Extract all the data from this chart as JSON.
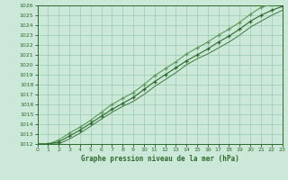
{
  "title": "Graphe pression niveau de la mer (hPa)",
  "xlim": [
    0,
    23
  ],
  "ylim": [
    1012,
    1026
  ],
  "xticks": [
    0,
    1,
    2,
    3,
    4,
    5,
    6,
    7,
    8,
    9,
    10,
    11,
    12,
    13,
    14,
    15,
    16,
    17,
    18,
    19,
    20,
    21,
    22,
    23
  ],
  "yticks": [
    1012,
    1013,
    1014,
    1015,
    1016,
    1017,
    1018,
    1019,
    1020,
    1021,
    1022,
    1023,
    1024,
    1025,
    1026
  ],
  "bg_color": "#cce8d8",
  "grid_color": "#99ccb3",
  "line_color_dark": "#2d6a2d",
  "line_color_mid": "#3d7a3d",
  "line_color_light": "#5a9a5a",
  "x": [
    0,
    1,
    2,
    3,
    4,
    5,
    6,
    7,
    8,
    9,
    10,
    11,
    12,
    13,
    14,
    15,
    16,
    17,
    18,
    19,
    20,
    21,
    22,
    23
  ],
  "p_upper": [
    1012.0,
    1012.0,
    1012.4,
    1013.1,
    1013.7,
    1014.4,
    1015.2,
    1016.0,
    1016.6,
    1017.2,
    1018.0,
    1018.9,
    1019.6,
    1020.3,
    1021.1,
    1021.7,
    1022.3,
    1023.0,
    1023.6,
    1024.3,
    1025.1,
    1025.8,
    1026.1,
    1026.3
  ],
  "p_mid": [
    1012.0,
    1012.0,
    1012.2,
    1012.8,
    1013.4,
    1014.1,
    1014.8,
    1015.5,
    1016.1,
    1016.7,
    1017.5,
    1018.3,
    1019.0,
    1019.7,
    1020.4,
    1021.0,
    1021.6,
    1022.3,
    1022.9,
    1023.6,
    1024.4,
    1025.0,
    1025.5,
    1025.9
  ],
  "p_lower": [
    1012.0,
    1012.0,
    1012.0,
    1012.5,
    1013.1,
    1013.8,
    1014.5,
    1015.2,
    1015.8,
    1016.3,
    1017.0,
    1017.8,
    1018.5,
    1019.2,
    1020.0,
    1020.6,
    1021.1,
    1021.7,
    1022.3,
    1023.0,
    1023.8,
    1024.4,
    1025.0,
    1025.5
  ]
}
